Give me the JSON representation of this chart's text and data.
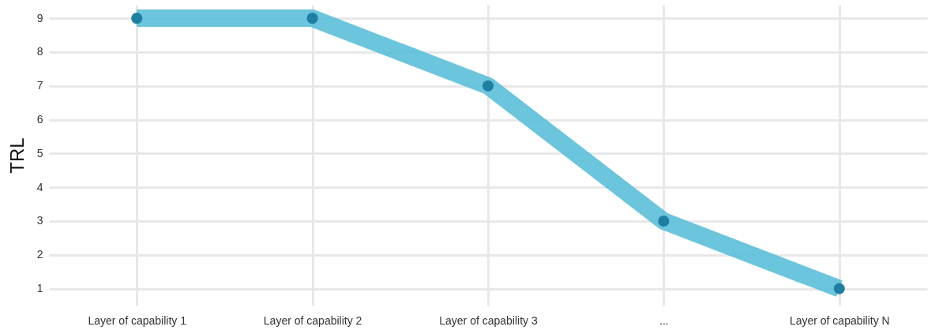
{
  "chart_data": {
    "type": "line",
    "ylabel": "TRL",
    "categories": [
      "Layer of capability 1",
      "Layer of capability 2",
      "Layer of capability 3",
      "...",
      "Layer of capability N"
    ],
    "series": [
      {
        "color": "#5bbfd8",
        "colors": [
          "#1f7fa3",
          "#1f7fa3",
          "#1f7fa3",
          "#1f7fa3",
          "#1f7fa3"
        ],
        "values": [
          9,
          9,
          7,
          3,
          1
        ]
      }
    ],
    "ylim": [
      0.5,
      9.4
    ],
    "yticks": [
      1,
      2,
      3,
      4,
      5,
      6,
      7,
      8,
      9
    ],
    "grid": true,
    "marker": "circle"
  }
}
